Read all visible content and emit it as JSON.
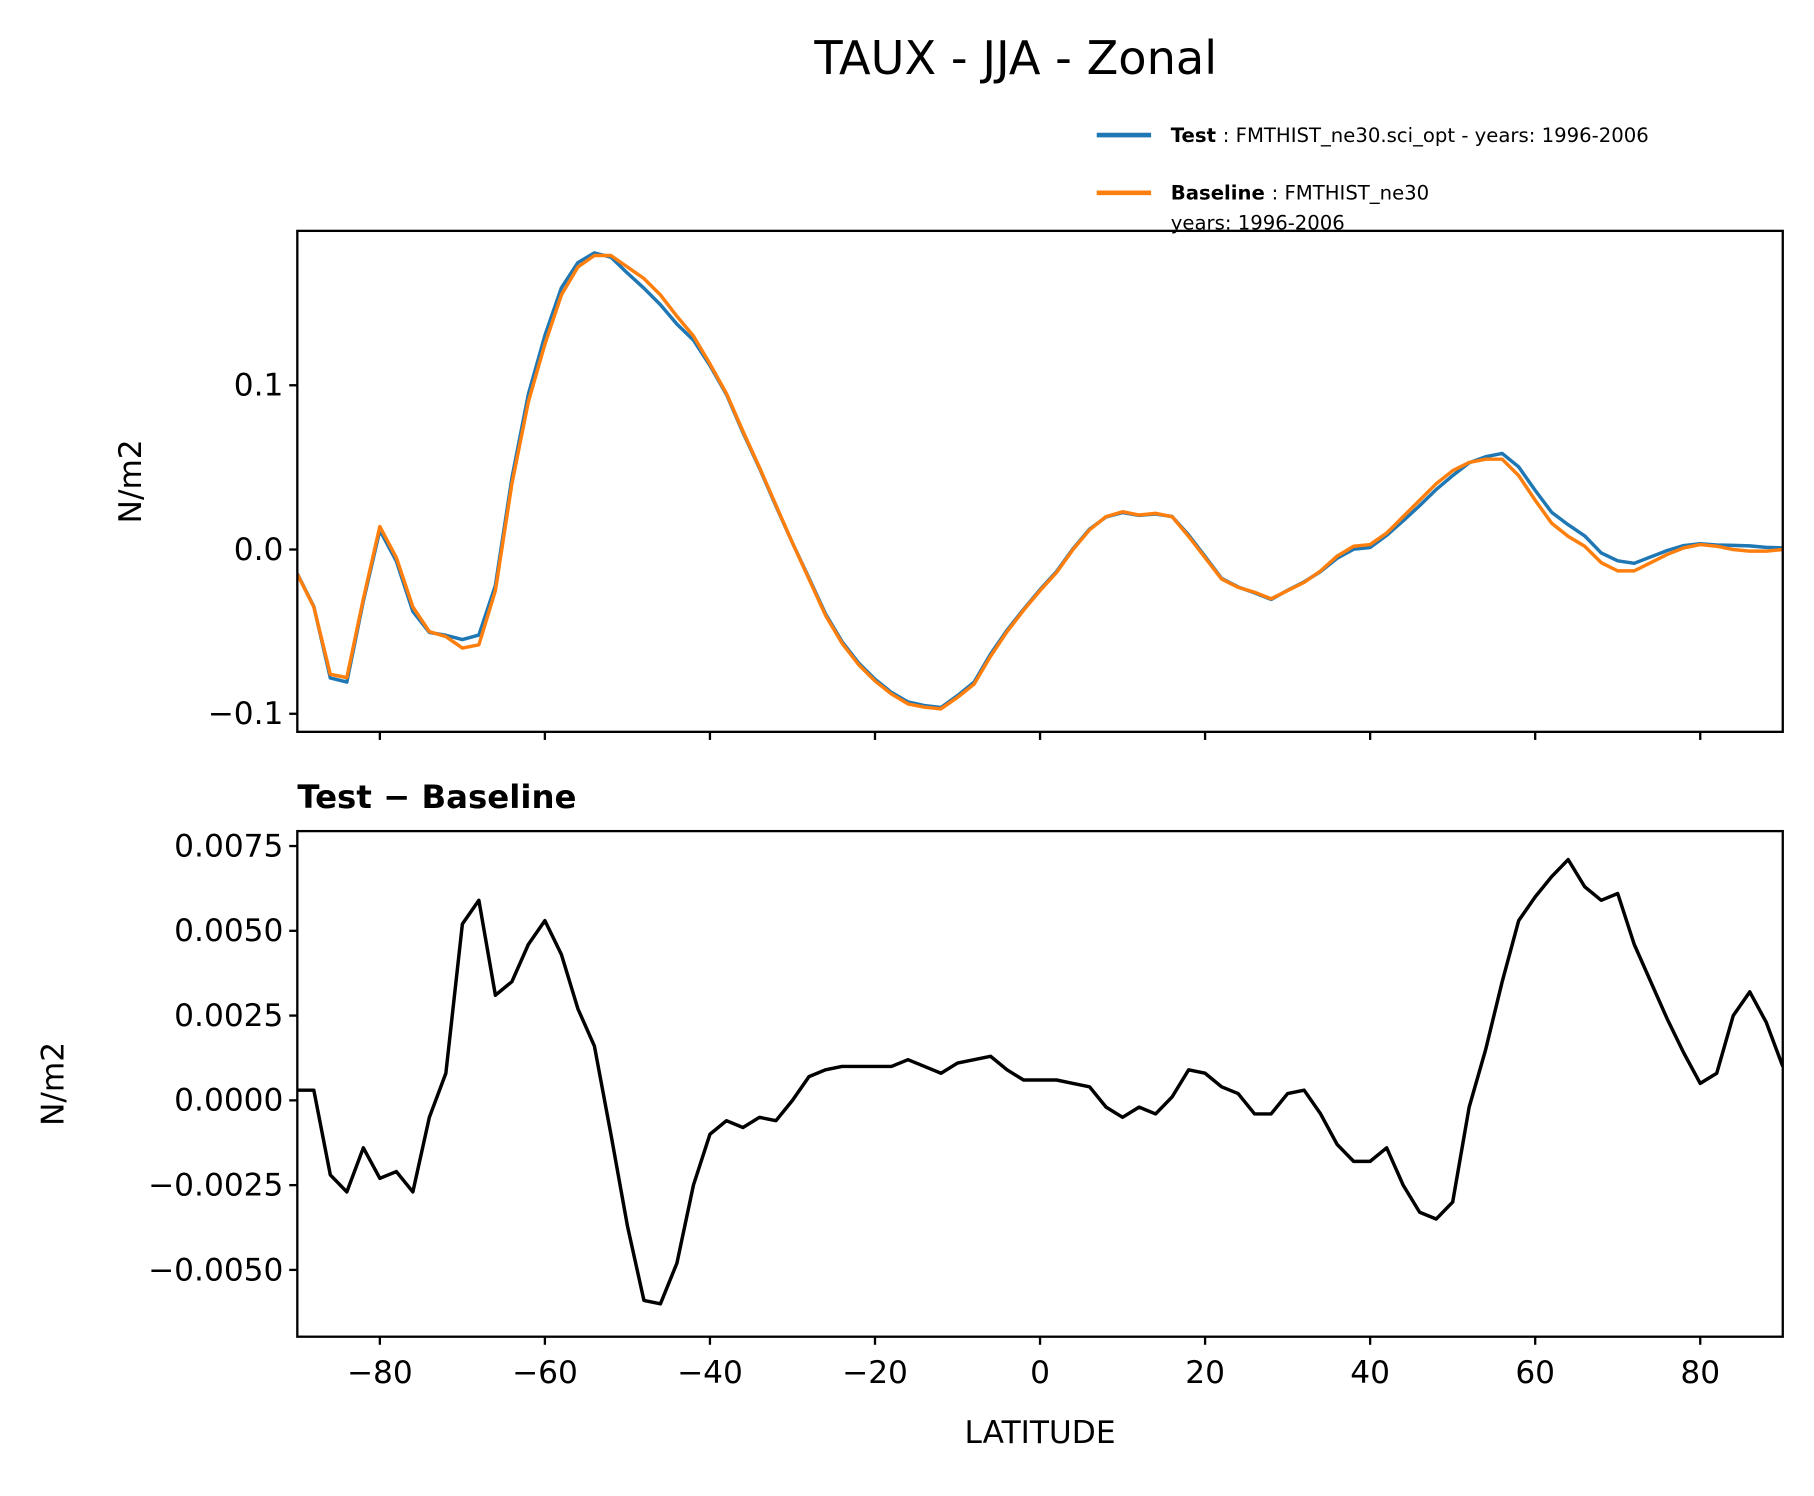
{
  "title": "TAUX - JJA - Zonal",
  "chart_data": [
    {
      "type": "line",
      "ylabel": "N/m2",
      "x": [
        -90,
        -88,
        -86,
        -84,
        -82,
        -80,
        -78,
        -76,
        -74,
        -72,
        -70,
        -68,
        -66,
        -64,
        -62,
        -60,
        -58,
        -56,
        -54,
        -52,
        -50,
        -48,
        -46,
        -44,
        -42,
        -40,
        -38,
        -36,
        -34,
        -32,
        -30,
        -28,
        -26,
        -24,
        -22,
        -20,
        -18,
        -16,
        -14,
        -12,
        -10,
        -8,
        -6,
        -4,
        -2,
        0,
        2,
        4,
        6,
        8,
        10,
        12,
        14,
        16,
        18,
        20,
        22,
        24,
        26,
        28,
        30,
        32,
        34,
        36,
        38,
        40,
        42,
        44,
        46,
        48,
        50,
        52,
        54,
        56,
        58,
        60,
        62,
        64,
        66,
        68,
        70,
        72,
        74,
        76,
        78,
        80,
        82,
        84,
        86,
        88,
        90
      ],
      "series": [
        {
          "name": "Test : FMTHIST_ne30.sci_opt - years: 1996-2006",
          "color": "#1f77b4",
          "values": [
            -0.0147,
            -0.0347,
            -0.0782,
            -0.0807,
            -0.0314,
            0.0117,
            -0.0071,
            -0.0377,
            -0.0505,
            -0.0522,
            -0.0548,
            -0.0521,
            -0.0219,
            0.0435,
            0.0946,
            0.1303,
            0.1593,
            0.1747,
            0.1806,
            0.178,
            0.1683,
            0.1591,
            0.149,
            0.1372,
            0.1275,
            0.112,
            0.0944,
            0.0712,
            0.0495,
            0.0264,
            0.004,
            -0.0173,
            -0.0391,
            -0.056,
            -0.069,
            -0.079,
            -0.087,
            -0.0928,
            -0.095,
            -0.0962,
            -0.0889,
            -0.0808,
            -0.0637,
            -0.0491,
            -0.0364,
            -0.0244,
            -0.0134,
            0.0005,
            0.0124,
            0.0198,
            0.0225,
            0.0208,
            0.0216,
            0.0201,
            0.0089,
            -0.0042,
            -0.0176,
            -0.0228,
            -0.0264,
            -0.0304,
            -0.0248,
            -0.0197,
            -0.0134,
            -0.0053,
            0.0002,
            0.0012,
            0.0086,
            0.0175,
            0.0267,
            0.0365,
            0.045,
            0.0528,
            0.0565,
            0.0585,
            0.0503,
            0.036,
            0.0226,
            0.0151,
            0.0083,
            -0.0021,
            -0.0069,
            -0.0084,
            -0.0045,
            -0.0006,
            0.0024,
            0.0035,
            0.0028,
            0.0025,
            0.0022,
            0.0013,
            0.001
          ]
        },
        {
          "name": "Baseline : FMTHIST_ne30\nyears: 1996-2006",
          "color": "#ff7f0e",
          "values": [
            -0.015,
            -0.035,
            -0.076,
            -0.078,
            -0.03,
            0.014,
            -0.005,
            -0.035,
            -0.05,
            -0.053,
            -0.06,
            -0.058,
            -0.025,
            0.04,
            0.09,
            0.125,
            0.155,
            0.172,
            0.179,
            0.179,
            0.172,
            0.165,
            0.155,
            0.142,
            0.13,
            0.113,
            0.095,
            0.072,
            0.05,
            0.027,
            0.004,
            -0.018,
            -0.04,
            -0.057,
            -0.07,
            -0.08,
            -0.088,
            -0.094,
            -0.096,
            -0.097,
            -0.09,
            -0.082,
            -0.065,
            -0.05,
            -0.037,
            -0.025,
            -0.014,
            0,
            0.012,
            0.02,
            0.023,
            0.021,
            0.022,
            0.02,
            0.008,
            -0.005,
            -0.018,
            -0.023,
            -0.026,
            -0.03,
            -0.025,
            -0.02,
            -0.013,
            -0.004,
            0.002,
            0.003,
            0.01,
            0.02,
            0.03,
            0.04,
            0.048,
            0.053,
            0.055,
            0.055,
            0.045,
            0.03,
            0.016,
            0.008,
            0.002,
            -0.008,
            -0.013,
            -0.013,
            -0.008,
            -0.003,
            0.001,
            0.003,
            0.002,
            0,
            -0.001,
            -0.001,
            0
          ]
        }
      ],
      "xlim": [
        -90,
        90
      ],
      "xticks": [
        -80,
        -60,
        -40,
        -20,
        0,
        20,
        40,
        60,
        80
      ],
      "xticklabels": false,
      "ylim": [
        -0.111,
        0.194
      ],
      "yticks": [
        {
          "value": -0.1,
          "label": "−0.1"
        },
        {
          "value": 0,
          "label": "0.0"
        },
        0.1
      ],
      "legend": "upper right"
    },
    {
      "type": "line",
      "title": "Test − Baseline",
      "xlabel": "LATITUDE",
      "ylabel": "N/m2",
      "x": [
        -90,
        -88,
        -86,
        -84,
        -82,
        -80,
        -78,
        -76,
        -74,
        -72,
        -70,
        -68,
        -66,
        -64,
        -62,
        -60,
        -58,
        -56,
        -54,
        -52,
        -50,
        -48,
        -46,
        -44,
        -42,
        -40,
        -38,
        -36,
        -34,
        -32,
        -30,
        -28,
        -26,
        -24,
        -22,
        -20,
        -18,
        -16,
        -14,
        -12,
        -10,
        -8,
        -6,
        -4,
        -2,
        0,
        2,
        4,
        6,
        8,
        10,
        12,
        14,
        16,
        18,
        20,
        22,
        24,
        26,
        28,
        30,
        32,
        34,
        36,
        38,
        40,
        42,
        44,
        46,
        48,
        50,
        52,
        54,
        56,
        58,
        60,
        62,
        64,
        66,
        68,
        70,
        72,
        74,
        76,
        78,
        80,
        82,
        84,
        86,
        88,
        90
      ],
      "series": [
        {
          "color": "#000000",
          "values": [
            0.0003,
            0.0003,
            -0.0022,
            -0.0027,
            -0.0014,
            -0.0023,
            -0.0021,
            -0.0027,
            -0.0005,
            0.0008,
            0.0052,
            0.0059,
            0.0031,
            0.0035,
            0.0046,
            0.0053,
            0.0043,
            0.0027,
            0.0016,
            -0.001,
            -0.0037,
            -0.0059,
            -0.006,
            -0.0048,
            -0.0025,
            -0.001,
            -0.0006,
            -0.0008,
            -0.0005,
            -0.0006,
            0,
            0.0007,
            0.0009,
            0.001,
            0.001,
            0.001,
            0.001,
            0.0012,
            0.001,
            0.0008,
            0.0011,
            0.0012,
            0.0013,
            0.0009,
            0.0006,
            0.0006,
            0.0006,
            0.0005,
            0.0004,
            -0.0002,
            -0.0005,
            -0.0002,
            -0.0004,
            0.0001,
            0.0009,
            0.0008,
            0.0004,
            0.0002,
            -0.0004,
            -0.0004,
            0.0002,
            0.0003,
            -0.0004,
            -0.0013,
            -0.0018,
            -0.0018,
            -0.0014,
            -0.0025,
            -0.0033,
            -0.0035,
            -0.003,
            -0.0002,
            0.0015,
            0.0035,
            0.0053,
            0.006,
            0.0066,
            0.0071,
            0.0063,
            0.0059,
            0.0061,
            0.0046,
            0.0035,
            0.0024,
            0.0014,
            0.0005,
            0.0008,
            0.0025,
            0.0032,
            0.0023,
            0.001
          ]
        }
      ],
      "xlim": [
        -90,
        90
      ],
      "xticks": [
        {
          "value": -80,
          "label": "−80"
        },
        {
          "value": -60,
          "label": "−60"
        },
        {
          "value": -40,
          "label": "−40"
        },
        {
          "value": -20,
          "label": "−20"
        },
        0,
        20,
        40,
        60,
        80
      ],
      "ylim": [
        -0.00697,
        0.00794
      ],
      "yticks": [
        {
          "value": -0.005,
          "label": "−0.0050"
        },
        {
          "value": -0.0025,
          "label": "−0.0025"
        },
        {
          "value": 0,
          "label": "0.0000"
        },
        0.0025,
        {
          "value": 0.005,
          "label": "0.0050"
        },
        0.0075
      ]
    }
  ]
}
